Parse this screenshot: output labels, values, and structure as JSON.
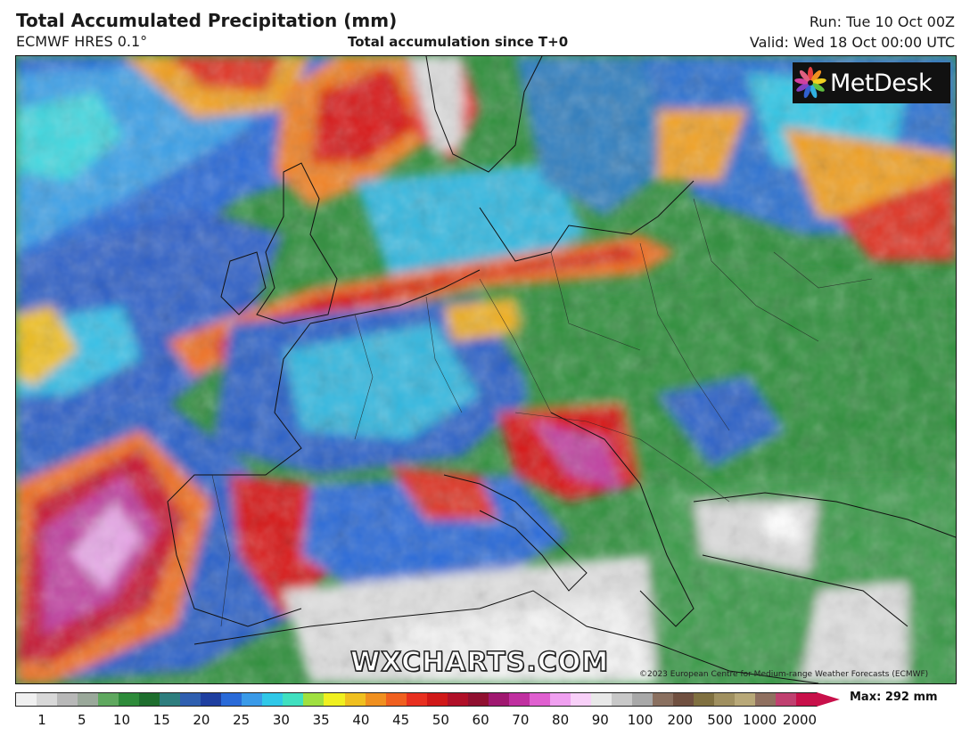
{
  "header": {
    "title": "Total Accumulated Precipitation (mm)",
    "model": "ECMWF HRES 0.1°",
    "subtitle": "Total accumulation since T+0",
    "run": "Run: Tue 10 Oct 00Z",
    "valid": "Valid: Wed 18 Oct 00:00 UTC"
  },
  "logo": {
    "text": "MetDesk"
  },
  "watermark": "WXCHARTS.COM",
  "copyright": "©2023 European Centre for Medium-range Weather Forecasts (ECMWF)",
  "scale": {
    "labels": [
      "1",
      "5",
      "10",
      "15",
      "20",
      "25",
      "30",
      "35",
      "40",
      "45",
      "50",
      "60",
      "70",
      "80",
      "90",
      "100",
      "200",
      "500",
      "1000",
      "2000"
    ],
    "max_label": "Max: 292 mm",
    "colors": [
      "#f0f0f0",
      "#d8d8d8",
      "#b8b8b8",
      "#9aa89a",
      "#5fa85f",
      "#2e8b3a",
      "#1e6e2e",
      "#2e7e7e",
      "#2f5fb0",
      "#1f3fa0",
      "#2a6ad8",
      "#3a9ae8",
      "#30c8e8",
      "#40e0c0",
      "#a0e040",
      "#f0f020",
      "#f0c020",
      "#f09020",
      "#f06020",
      "#e83020",
      "#d01818",
      "#b01028",
      "#901030",
      "#a01870",
      "#c030a0",
      "#e060d0",
      "#f0a0f0",
      "#f8d0f8",
      "#e8e8e8",
      "#c8c8c8",
      "#a8a8a8",
      "#8a7060",
      "#705040",
      "#807040",
      "#a09060",
      "#b8a878",
      "#907060",
      "#c04070",
      "#c8104a"
    ]
  },
  "map": {
    "features": [
      "coastlines",
      "country-borders",
      "precipitation-field"
    ]
  }
}
